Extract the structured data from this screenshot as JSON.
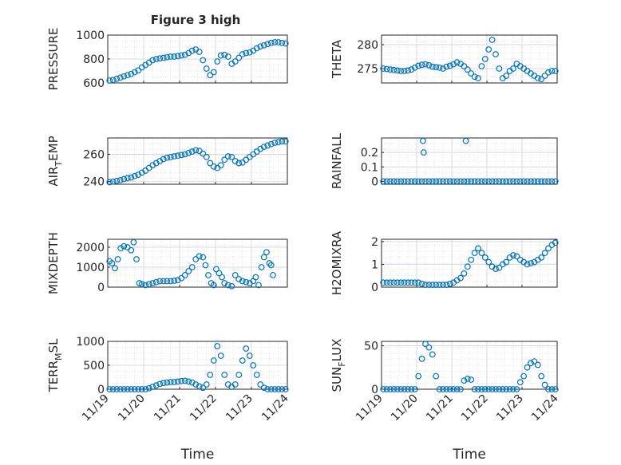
{
  "figure": {
    "title": "Figure 3 high"
  },
  "time_ticks": [
    "11/19",
    "11/20",
    "11/21",
    "11/22",
    "11/23",
    "11/24"
  ],
  "colors": {
    "marker": "#0072BD",
    "axis": "#262626",
    "grid": "#d9d9d9",
    "minor_grid": "#e6e6e6"
  },
  "chart_data": [
    {
      "type": "scatter",
      "title": "Figure 3 high",
      "ylabel": "PRESSURE",
      "xlabel": "",
      "xlim": [
        0,
        5
      ],
      "ylim": [
        600,
        1000
      ],
      "yticks": [
        "600",
        "800",
        "1000"
      ],
      "ytickvals": [
        600,
        800,
        1000
      ],
      "x": [
        0.05,
        0.15,
        0.25,
        0.35,
        0.45,
        0.55,
        0.65,
        0.75,
        0.85,
        0.95,
        1.05,
        1.15,
        1.25,
        1.35,
        1.45,
        1.55,
        1.65,
        1.75,
        1.85,
        1.95,
        2.05,
        2.15,
        2.25,
        2.35,
        2.45,
        2.55,
        2.65,
        2.75,
        2.85,
        2.95,
        3.05,
        3.15,
        3.25,
        3.35,
        3.45,
        3.55,
        3.65,
        3.75,
        3.85,
        3.95,
        4.05,
        4.15,
        4.25,
        4.35,
        4.45,
        4.55,
        4.65,
        4.75,
        4.85,
        4.95,
        5.05,
        5.15
      ],
      "y": [
        620,
        625,
        635,
        645,
        655,
        665,
        675,
        690,
        705,
        730,
        750,
        770,
        790,
        800,
        805,
        810,
        815,
        820,
        820,
        825,
        830,
        835,
        850,
        870,
        880,
        860,
        790,
        720,
        665,
        690,
        780,
        830,
        835,
        820,
        760,
        780,
        810,
        840,
        850,
        855,
        870,
        890,
        905,
        915,
        925,
        935,
        940,
        940,
        935,
        930,
        930,
        930
      ]
    },
    {
      "type": "scatter",
      "title": "",
      "ylabel": "THETA",
      "xlabel": "",
      "xlim": [
        0,
        5
      ],
      "ylim": [
        272,
        282
      ],
      "yticks": [
        "275",
        "280"
      ],
      "ytickvals": [
        275,
        280
      ],
      "x": [
        0.05,
        0.15,
        0.25,
        0.35,
        0.45,
        0.55,
        0.65,
        0.75,
        0.85,
        0.95,
        1.05,
        1.15,
        1.25,
        1.35,
        1.45,
        1.55,
        1.65,
        1.75,
        1.85,
        1.95,
        2.05,
        2.15,
        2.25,
        2.35,
        2.45,
        2.55,
        2.65,
        2.75,
        2.85,
        2.95,
        3.05,
        3.15,
        3.25,
        3.35,
        3.45,
        3.55,
        3.65,
        3.75,
        3.85,
        3.95,
        4.05,
        4.15,
        4.25,
        4.35,
        4.45,
        4.55,
        4.65,
        4.75,
        4.85,
        4.95,
        5.05,
        5.15
      ],
      "y": [
        275.0,
        274.9,
        274.8,
        274.7,
        274.6,
        274.5,
        274.5,
        274.6,
        274.8,
        275.2,
        275.6,
        275.8,
        275.9,
        275.7,
        275.4,
        275.3,
        275.2,
        275.0,
        275.4,
        275.6,
        275.9,
        276.3,
        276.0,
        275.5,
        274.8,
        274.0,
        273.3,
        273.0,
        275.5,
        277.0,
        279.0,
        281.0,
        278.0,
        275.0,
        273.0,
        273.5,
        274.5,
        275.0,
        276.0,
        275.5,
        275.0,
        274.5,
        274.0,
        273.5,
        273.0,
        272.8,
        273.5,
        274.2,
        274.5,
        274.5,
        274.5,
        274.5
      ]
    },
    {
      "type": "scatter",
      "title": "",
      "ylabel": "AIR_TEMP",
      "xlabel": "",
      "xlim": [
        0,
        5
      ],
      "ylim": [
        238,
        272
      ],
      "yticks": [
        "240",
        "260"
      ],
      "ytickvals": [
        240,
        260
      ],
      "x": [
        0.05,
        0.15,
        0.25,
        0.35,
        0.45,
        0.55,
        0.65,
        0.75,
        0.85,
        0.95,
        1.05,
        1.15,
        1.25,
        1.35,
        1.45,
        1.55,
        1.65,
        1.75,
        1.85,
        1.95,
        2.05,
        2.15,
        2.25,
        2.35,
        2.45,
        2.55,
        2.65,
        2.75,
        2.85,
        2.95,
        3.05,
        3.15,
        3.25,
        3.35,
        3.45,
        3.55,
        3.65,
        3.75,
        3.85,
        3.95,
        4.05,
        4.15,
        4.25,
        4.35,
        4.45,
        4.55,
        4.65,
        4.75,
        4.85,
        4.95,
        5.05,
        5.15
      ],
      "y": [
        239.5,
        240.0,
        240.5,
        241.0,
        241.8,
        242.5,
        243.0,
        244.0,
        245.0,
        246.5,
        248.0,
        250.0,
        252.0,
        253.5,
        255.0,
        256.5,
        257.5,
        258.0,
        258.5,
        259.0,
        259.5,
        260.0,
        261.0,
        262.0,
        263.0,
        262.5,
        260.5,
        258.0,
        253.5,
        251.0,
        250.0,
        252.0,
        256.0,
        258.5,
        258.0,
        255.0,
        253.5,
        254.0,
        256.0,
        258.0,
        260.0,
        262.0,
        264.0,
        265.5,
        266.5,
        267.5,
        268.5,
        269.0,
        269.5,
        269.5,
        269.5,
        269.5
      ]
    },
    {
      "type": "scatter",
      "title": "",
      "ylabel": "RAINFALL",
      "xlabel": "",
      "xlim": [
        0,
        5
      ],
      "ylim": [
        -0.02,
        0.3
      ],
      "yticks": [
        "0",
        "0.1",
        "0.2"
      ],
      "ytickvals": [
        0,
        0.1,
        0.2
      ],
      "x": [
        0.05,
        0.15,
        0.25,
        0.35,
        0.45,
        0.55,
        0.65,
        0.75,
        0.85,
        0.95,
        1.05,
        1.15,
        1.25,
        1.35,
        1.45,
        1.55,
        1.65,
        1.75,
        1.85,
        1.95,
        2.05,
        2.15,
        2.25,
        2.35,
        2.45,
        2.55,
        2.65,
        2.75,
        2.85,
        2.95,
        3.05,
        3.15,
        3.25,
        3.35,
        3.45,
        3.55,
        3.65,
        3.75,
        3.85,
        3.95,
        4.05,
        4.15,
        4.25,
        4.35,
        4.45,
        4.55,
        4.65,
        4.75,
        4.85,
        4.95,
        5.05,
        5.15,
        1.18,
        1.2,
        2.4
      ],
      "y": [
        0,
        0,
        0,
        0,
        0,
        0,
        0,
        0,
        0,
        0,
        0,
        0,
        0,
        0,
        0,
        0,
        0,
        0,
        0,
        0,
        0,
        0,
        0,
        0,
        0,
        0,
        0,
        0,
        0,
        0,
        0,
        0,
        0,
        0,
        0,
        0,
        0,
        0,
        0,
        0,
        0,
        0,
        0,
        0,
        0,
        0,
        0,
        0,
        0,
        0,
        0,
        0,
        0.28,
        0.2,
        0.28
      ]
    },
    {
      "type": "scatter",
      "title": "",
      "ylabel": "MIXDEPTH",
      "xlabel": "",
      "xlim": [
        0,
        5
      ],
      "ylim": [
        0,
        2400
      ],
      "yticks": [
        "0",
        "1000",
        "2000"
      ],
      "ytickvals": [
        0,
        1000,
        2000
      ],
      "x": [
        0.05,
        0.12,
        0.2,
        0.28,
        0.36,
        0.45,
        0.55,
        0.65,
        0.72,
        0.8,
        0.88,
        0.95,
        1.05,
        1.15,
        1.25,
        1.35,
        1.45,
        1.55,
        1.65,
        1.75,
        1.85,
        1.95,
        2.05,
        2.15,
        2.25,
        2.35,
        2.45,
        2.55,
        2.65,
        2.72,
        2.8,
        2.88,
        2.95,
        3.02,
        3.1,
        3.18,
        3.25,
        3.35,
        3.45,
        3.55,
        3.65,
        3.75,
        3.85,
        3.95,
        4.05,
        4.12,
        4.2,
        4.28,
        4.35,
        4.42,
        4.5,
        4.55,
        4.6
      ],
      "y": [
        1300,
        1200,
        950,
        1400,
        1950,
        2050,
        2000,
        1850,
        2250,
        1400,
        200,
        150,
        100,
        150,
        200,
        250,
        300,
        300,
        300,
        300,
        320,
        350,
        450,
        600,
        800,
        1000,
        1400,
        1550,
        1500,
        1100,
        600,
        200,
        100,
        900,
        700,
        500,
        200,
        100,
        50,
        600,
        400,
        300,
        250,
        200,
        300,
        500,
        100,
        1000,
        1500,
        1750,
        1200,
        1100,
        600
      ]
    },
    {
      "type": "scatter",
      "title": "",
      "ylabel": "H2OMIXRA",
      "xlabel": "",
      "xlim": [
        0,
        5
      ],
      "ylim": [
        0,
        2.1
      ],
      "yticks": [
        "0",
        "1",
        "2"
      ],
      "ytickvals": [
        0,
        1,
        2
      ],
      "x": [
        0.05,
        0.15,
        0.25,
        0.35,
        0.45,
        0.55,
        0.65,
        0.75,
        0.85,
        0.95,
        1.05,
        1.15,
        1.25,
        1.35,
        1.45,
        1.55,
        1.65,
        1.75,
        1.85,
        1.95,
        2.05,
        2.15,
        2.25,
        2.35,
        2.45,
        2.55,
        2.65,
        2.75,
        2.85,
        2.95,
        3.05,
        3.15,
        3.25,
        3.35,
        3.45,
        3.55,
        3.65,
        3.75,
        3.85,
        3.95,
        4.05,
        4.15,
        4.25,
        4.35,
        4.45,
        4.55,
        4.65,
        4.75,
        4.85,
        4.95,
        5.05,
        5.15
      ],
      "y": [
        0.2,
        0.2,
        0.2,
        0.2,
        0.2,
        0.2,
        0.2,
        0.2,
        0.2,
        0.2,
        0.2,
        0.15,
        0.1,
        0.1,
        0.1,
        0.1,
        0.1,
        0.1,
        0.1,
        0.15,
        0.2,
        0.3,
        0.4,
        0.6,
        0.9,
        1.2,
        1.5,
        1.7,
        1.5,
        1.3,
        1.1,
        0.9,
        0.8,
        0.85,
        1.0,
        1.1,
        1.3,
        1.4,
        1.35,
        1.2,
        1.1,
        1.0,
        1.05,
        1.1,
        1.2,
        1.3,
        1.5,
        1.7,
        1.85,
        1.95,
        2.0,
        2.05
      ]
    },
    {
      "type": "scatter",
      "title": "",
      "ylabel": "TERR_MSL",
      "xlabel": "Time",
      "xlim": [
        0,
        5
      ],
      "ylim": [
        0,
        1000
      ],
      "yticks": [
        "0",
        "500",
        "1000"
      ],
      "ytickvals": [
        0,
        500,
        1000
      ],
      "x": [
        0.05,
        0.15,
        0.25,
        0.35,
        0.45,
        0.55,
        0.65,
        0.75,
        0.85,
        0.95,
        1.05,
        1.15,
        1.25,
        1.35,
        1.45,
        1.55,
        1.65,
        1.75,
        1.85,
        1.95,
        2.05,
        2.15,
        2.25,
        2.35,
        2.45,
        2.55,
        2.65,
        2.75,
        2.85,
        2.95,
        3.05,
        3.15,
        3.25,
        3.35,
        3.45,
        3.55,
        3.65,
        3.75,
        3.85,
        3.95,
        4.05,
        4.15,
        4.25,
        4.35,
        4.45,
        4.55,
        4.65,
        4.75,
        4.85,
        4.95,
        5.05,
        5.15
      ],
      "y": [
        0,
        0,
        0,
        0,
        0,
        0,
        0,
        0,
        0,
        0,
        0,
        20,
        50,
        80,
        110,
        130,
        140,
        150,
        150,
        160,
        170,
        175,
        160,
        140,
        100,
        60,
        30,
        100,
        300,
        600,
        900,
        700,
        300,
        100,
        50,
        100,
        300,
        600,
        850,
        700,
        500,
        300,
        100,
        30,
        0,
        0,
        0,
        0,
        0,
        0,
        0,
        0
      ]
    },
    {
      "type": "scatter",
      "title": "",
      "ylabel": "SUN_FLUX",
      "xlabel": "Time",
      "xlim": [
        0,
        5
      ],
      "ylim": [
        0,
        55
      ],
      "yticks": [
        "0",
        "50"
      ],
      "ytickvals": [
        0,
        50
      ],
      "x": [
        0.05,
        0.15,
        0.25,
        0.35,
        0.45,
        0.55,
        0.65,
        0.75,
        0.85,
        0.95,
        1.05,
        1.15,
        1.25,
        1.35,
        1.45,
        1.55,
        1.65,
        1.75,
        1.85,
        1.95,
        2.05,
        2.15,
        2.25,
        2.35,
        2.45,
        2.55,
        2.65,
        2.75,
        2.85,
        2.95,
        3.05,
        3.15,
        3.25,
        3.35,
        3.45,
        3.55,
        3.65,
        3.75,
        3.85,
        3.95,
        4.05,
        4.15,
        4.25,
        4.35,
        4.45,
        4.55,
        4.65,
        4.75,
        4.85,
        4.95,
        5.05,
        5.15
      ],
      "y": [
        0,
        0,
        0,
        0,
        0,
        0,
        0,
        0,
        0,
        0,
        15,
        35,
        52,
        48,
        40,
        15,
        0,
        0,
        0,
        0,
        0,
        0,
        0,
        10,
        12,
        11,
        0,
        0,
        0,
        0,
        0,
        0,
        0,
        0,
        0,
        0,
        0,
        0,
        0,
        8,
        15,
        25,
        30,
        32,
        28,
        15,
        5,
        0,
        0,
        0,
        0,
        0
      ]
    }
  ]
}
